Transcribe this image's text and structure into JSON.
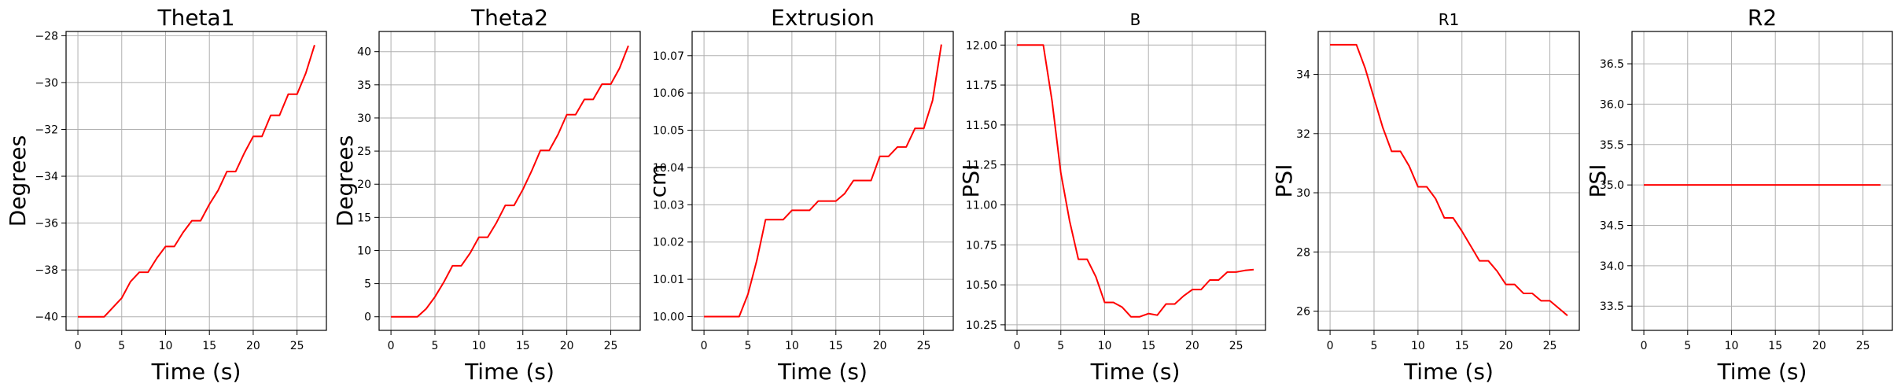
{
  "chart_data": [
    {
      "type": "line",
      "title": "Theta1",
      "xlabel": "Time (s)",
      "ylabel": "Degrees",
      "xlim": [
        -1.35,
        28.35
      ],
      "ylim": [
        -40.58,
        -27.82
      ],
      "xticks": [
        0,
        5,
        10,
        15,
        20,
        25
      ],
      "yticks": [
        -40,
        -38,
        -36,
        -34,
        -32,
        -30,
        -28
      ],
      "grid": true,
      "series": [
        {
          "color": "#ff0000",
          "x": [
            0,
            1,
            2,
            3,
            4,
            5,
            6,
            7,
            8,
            9,
            10,
            11,
            12,
            13,
            14,
            15,
            16,
            17,
            18,
            19,
            20,
            21,
            22,
            23,
            24,
            25,
            26,
            27
          ],
          "values": [
            -40,
            -40,
            -40,
            -40,
            -39.6,
            -39.2,
            -38.5,
            -38.1,
            -38.1,
            -37.5,
            -37.0,
            -37.0,
            -36.4,
            -35.9,
            -35.9,
            -35.2,
            -34.6,
            -33.8,
            -33.8,
            -33.0,
            -32.3,
            -32.3,
            -31.4,
            -31.4,
            -30.5,
            -30.5,
            -29.6,
            -28.4
          ]
        }
      ]
    },
    {
      "type": "line",
      "title": "Theta2",
      "xlabel": "Time (s)",
      "ylabel": "Degrees",
      "xlim": [
        -1.35,
        28.35
      ],
      "ylim": [
        -2.05,
        43.05
      ],
      "xticks": [
        0,
        5,
        10,
        15,
        20,
        25
      ],
      "yticks": [
        0,
        5,
        10,
        15,
        20,
        25,
        30,
        35,
        40
      ],
      "grid": true,
      "series": [
        {
          "color": "#ff0000",
          "x": [
            0,
            1,
            2,
            3,
            4,
            5,
            6,
            7,
            8,
            9,
            10,
            11,
            12,
            13,
            14,
            15,
            16,
            17,
            18,
            19,
            20,
            21,
            22,
            23,
            24,
            25,
            26,
            27
          ],
          "values": [
            0,
            0,
            0,
            0,
            1.2,
            3.0,
            5.2,
            7.7,
            7.7,
            9.6,
            12.0,
            12.0,
            14.2,
            16.8,
            16.8,
            19.2,
            22.0,
            25.1,
            25.1,
            27.5,
            30.5,
            30.5,
            32.8,
            32.8,
            35.1,
            35.1,
            37.5,
            40.9
          ]
        }
      ]
    },
    {
      "type": "line",
      "title": "Extrusion",
      "xlabel": "Time (s)",
      "ylabel": "cm",
      "xlim": [
        -1.35,
        28.35
      ],
      "ylim": [
        9.9963,
        10.0765
      ],
      "xticks": [
        0,
        5,
        10,
        15,
        20,
        25
      ],
      "yticks": [
        10.0,
        10.01,
        10.02,
        10.03,
        10.04,
        10.05,
        10.06,
        10.07
      ],
      "grid": true,
      "series": [
        {
          "color": "#ff0000",
          "x": [
            0,
            1,
            2,
            3,
            4,
            5,
            6,
            7,
            8,
            9,
            10,
            11,
            12,
            13,
            14,
            15,
            16,
            17,
            18,
            19,
            20,
            21,
            22,
            23,
            24,
            25,
            26,
            27
          ],
          "values": [
            10.0,
            10.0,
            10.0,
            10.0,
            10.0,
            10.006,
            10.015,
            10.026,
            10.026,
            10.026,
            10.0285,
            10.0285,
            10.0285,
            10.031,
            10.031,
            10.031,
            10.033,
            10.0365,
            10.0365,
            10.0365,
            10.043,
            10.043,
            10.0455,
            10.0455,
            10.0505,
            10.0505,
            10.058,
            10.073
          ]
        }
      ]
    },
    {
      "type": "line",
      "title": "B",
      "xlabel": "Time (s)",
      "ylabel": "PSI",
      "xlim": [
        -1.35,
        28.35
      ],
      "ylim": [
        10.215,
        12.085
      ],
      "xticks": [
        0,
        5,
        10,
        15,
        20,
        25
      ],
      "yticks": [
        10.25,
        10.5,
        10.75,
        11.0,
        11.25,
        11.5,
        11.75,
        12.0
      ],
      "grid": true,
      "series": [
        {
          "color": "#ff0000",
          "x": [
            0,
            1,
            2,
            3,
            4,
            5,
            6,
            7,
            8,
            9,
            10,
            11,
            12,
            13,
            14,
            15,
            16,
            17,
            18,
            19,
            20,
            21,
            22,
            23,
            24,
            25,
            26,
            27
          ],
          "values": [
            12.0,
            12.0,
            12.0,
            12.0,
            11.65,
            11.2,
            10.9,
            10.66,
            10.66,
            10.55,
            10.39,
            10.39,
            10.36,
            10.3,
            10.3,
            10.32,
            10.31,
            10.38,
            10.38,
            10.43,
            10.47,
            10.47,
            10.53,
            10.53,
            10.58,
            10.58,
            10.59,
            10.595
          ]
        }
      ]
    },
    {
      "type": "line",
      "title": "R1",
      "xlabel": "Time (s)",
      "ylabel": "PSI",
      "xlim": [
        -1.35,
        28.35
      ],
      "ylim": [
        25.35,
        35.45
      ],
      "xticks": [
        0,
        5,
        10,
        15,
        20,
        25
      ],
      "yticks": [
        26,
        28,
        30,
        32,
        34
      ],
      "grid": true,
      "series": [
        {
          "color": "#ff0000",
          "x": [
            0,
            1,
            2,
            3,
            4,
            5,
            6,
            7,
            8,
            9,
            10,
            11,
            12,
            13,
            14,
            15,
            16,
            17,
            18,
            19,
            20,
            21,
            22,
            23,
            24,
            25,
            26,
            27
          ],
          "values": [
            35,
            35,
            35,
            35,
            34.2,
            33.2,
            32.2,
            31.4,
            31.4,
            30.9,
            30.2,
            30.2,
            29.8,
            29.15,
            29.15,
            28.7,
            28.2,
            27.7,
            27.7,
            27.35,
            26.9,
            26.9,
            26.6,
            26.6,
            26.35,
            26.35,
            26.1,
            25.85
          ]
        }
      ]
    },
    {
      "type": "line",
      "title": "R2",
      "xlabel": "Time (s)",
      "ylabel": "PSI",
      "xlim": [
        -1.35,
        28.35
      ],
      "ylim": [
        33.2,
        36.9
      ],
      "xticks": [
        0,
        5,
        10,
        15,
        20,
        25
      ],
      "yticks": [
        33.5,
        34.0,
        34.5,
        35.0,
        35.5,
        36.0,
        36.5
      ],
      "grid": true,
      "series": [
        {
          "color": "#ff0000",
          "x": [
            0,
            27
          ],
          "values": [
            35.0,
            35.0
          ]
        }
      ]
    }
  ]
}
